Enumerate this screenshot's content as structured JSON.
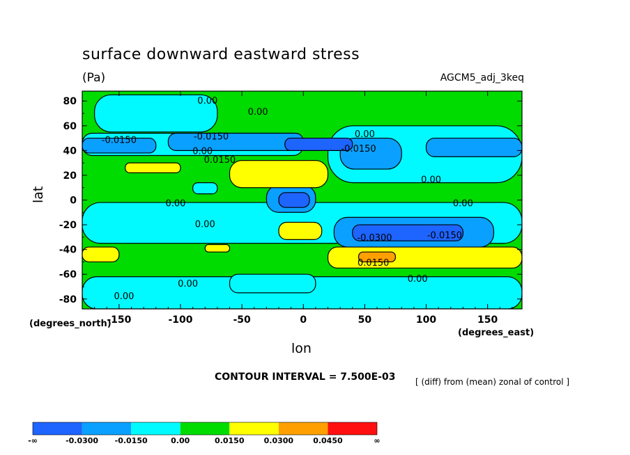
{
  "title": "surface downward eastward stress",
  "units": "(Pa)",
  "run_name": "AGCM5_adj_3keq",
  "y_units": "(degrees_north)",
  "x_units": "(degrees_east)",
  "contour_interval": "CONTOUR INTERVAL = 7.500E-03",
  "diff_note": "[ (diff) from (mean) zonal of control ]",
  "colors": {
    "c1": "#1e64ff",
    "c2": "#0aa0ff",
    "c3": "#00faff",
    "c4": "#00dc00",
    "c5": "#ffff00",
    "c6": "#ffa000",
    "c7": "#ff0f0f"
  },
  "contour_labels": [
    {
      "text": "0.00",
      "lon": -78,
      "lat": 78
    },
    {
      "text": "0.00",
      "lon": -37,
      "lat": 69
    },
    {
      "text": "-0.0150",
      "lon": -150,
      "lat": 46
    },
    {
      "text": "-0.0150",
      "lon": -75,
      "lat": 49
    },
    {
      "text": "0.00",
      "lon": 50,
      "lat": 51
    },
    {
      "text": "-0.0150",
      "lon": 45,
      "lat": 39
    },
    {
      "text": "0.00",
      "lon": -82,
      "lat": 37
    },
    {
      "text": "0.0150",
      "lon": -68,
      "lat": 30
    },
    {
      "text": "0.00",
      "lon": 104,
      "lat": 14
    },
    {
      "text": "0.00",
      "lon": -104,
      "lat": -5
    },
    {
      "text": "0.00",
      "lon": 130,
      "lat": -5
    },
    {
      "text": "0.00",
      "lon": -80,
      "lat": -22
    },
    {
      "text": "-0.0300",
      "lon": 58,
      "lat": -33
    },
    {
      "text": "-0.0150",
      "lon": 115,
      "lat": -31
    },
    {
      "text": "0.0150",
      "lon": 57,
      "lat": -53
    },
    {
      "text": "0.00",
      "lon": 93,
      "lat": -66
    },
    {
      "text": "0.00",
      "lon": -94,
      "lat": -70
    },
    {
      "text": "0.00",
      "lon": -146,
      "lat": -80
    }
  ],
  "chart_data": {
    "type": "heatmap",
    "title": "surface downward eastward stress",
    "xlabel": "lon",
    "ylabel": "lat",
    "xlim": [
      -180,
      178
    ],
    "ylim": [
      -88,
      88
    ],
    "x_ticks": [
      -150,
      -100,
      -50,
      0,
      50,
      100,
      150
    ],
    "y_ticks": [
      80,
      60,
      40,
      20,
      0,
      -20,
      -40,
      -60,
      -80
    ],
    "x_tick_labels": [
      "-150",
      "-100",
      "-50",
      "0",
      "50",
      "100",
      "150"
    ],
    "y_tick_labels": [
      "80",
      "60",
      "40",
      "20",
      "0",
      "-20",
      "-40",
      "-60",
      "-80"
    ],
    "colorbar": {
      "levels": [
        "-∞",
        "-0.0300",
        "-0.0150",
        "0.00",
        "0.0150",
        "0.0300",
        "0.0450",
        "∞"
      ],
      "colors": [
        "#1e64ff",
        "#0aa0ff",
        "#00faff",
        "#00dc00",
        "#ffff00",
        "#ffa000",
        "#ff0f0f"
      ]
    },
    "base": "#00dc00",
    "regions": [
      {
        "fill": "#00faff",
        "lon": [
          -180,
          178
        ],
        "lat": [
          -2,
          -35
        ]
      },
      {
        "fill": "#00faff",
        "lon": [
          -180,
          178
        ],
        "lat": [
          -62,
          -88
        ]
      },
      {
        "fill": "#00faff",
        "lon": [
          -170,
          -70
        ],
        "lat": [
          55,
          85
        ]
      },
      {
        "fill": "#00faff",
        "lon": [
          -180,
          0
        ],
        "lat": [
          36,
          54
        ]
      },
      {
        "fill": "#00faff",
        "lon": [
          20,
          178
        ],
        "lat": [
          14,
          60
        ]
      },
      {
        "fill": "#00faff",
        "lon": [
          -60,
          10
        ],
        "lat": [
          -60,
          -75
        ]
      },
      {
        "fill": "#0aa0ff",
        "lon": [
          -180,
          -120
        ],
        "lat": [
          38,
          50
        ]
      },
      {
        "fill": "#0aa0ff",
        "lon": [
          -110,
          0
        ],
        "lat": [
          40,
          54
        ]
      },
      {
        "fill": "#0aa0ff",
        "lon": [
          30,
          80
        ],
        "lat": [
          25,
          50
        ]
      },
      {
        "fill": "#0aa0ff",
        "lon": [
          100,
          178
        ],
        "lat": [
          35,
          50
        ]
      },
      {
        "fill": "#0aa0ff",
        "lon": [
          -30,
          10
        ],
        "lat": [
          -10,
          12
        ]
      },
      {
        "fill": "#0aa0ff",
        "lon": [
          25,
          155
        ],
        "lat": [
          -14,
          -38
        ]
      },
      {
        "fill": "#1e64ff",
        "lon": [
          -20,
          5
        ],
        "lat": [
          -6,
          6
        ]
      },
      {
        "fill": "#1e64ff",
        "lon": [
          40,
          130
        ],
        "lat": [
          -20,
          -33
        ]
      },
      {
        "fill": "#1e64ff",
        "lon": [
          -15,
          40
        ],
        "lat": [
          40,
          50
        ]
      },
      {
        "fill": "#ffff00",
        "lon": [
          -60,
          20
        ],
        "lat": [
          10,
          32
        ]
      },
      {
        "fill": "#ffff00",
        "lon": [
          -145,
          -100
        ],
        "lat": [
          22,
          30
        ]
      },
      {
        "fill": "#ffff00",
        "lon": [
          -20,
          15
        ],
        "lat": [
          -18,
          -32
        ]
      },
      {
        "fill": "#ffff00",
        "lon": [
          20,
          178
        ],
        "lat": [
          -38,
          -55
        ]
      },
      {
        "fill": "#ffff00",
        "lon": [
          -180,
          -150
        ],
        "lat": [
          -38,
          -50
        ]
      },
      {
        "fill": "#ffff00",
        "lon": [
          -80,
          -60
        ],
        "lat": [
          -36,
          -42
        ]
      },
      {
        "fill": "#ffa000",
        "lon": [
          45,
          75
        ],
        "lat": [
          -42,
          -50
        ]
      },
      {
        "fill": "#00faff",
        "lon": [
          -90,
          -70
        ],
        "lat": [
          5,
          14
        ]
      }
    ]
  }
}
